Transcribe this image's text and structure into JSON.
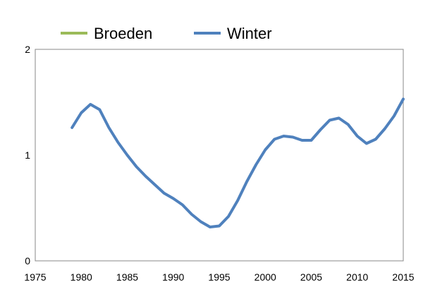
{
  "chart_data": {
    "type": "line",
    "title": "",
    "xlabel": "",
    "ylabel": "",
    "xlim": [
      1975,
      2015
    ],
    "ylim": [
      0,
      2
    ],
    "x_ticks": [
      1975,
      1980,
      1985,
      1990,
      1995,
      2000,
      2005,
      2010,
      2015
    ],
    "y_ticks": [
      0,
      1,
      2
    ],
    "grid": false,
    "legend_position": "top",
    "series": [
      {
        "name": "Broeden",
        "color": "#9bbb59",
        "x": [],
        "values": []
      },
      {
        "name": "Winter",
        "color": "#4f81bd",
        "x": [
          1979,
          1980,
          1981,
          1982,
          1983,
          1984,
          1985,
          1986,
          1987,
          1988,
          1989,
          1990,
          1991,
          1992,
          1993,
          1994,
          1995,
          1996,
          1997,
          1998,
          1999,
          2000,
          2001,
          2002,
          2003,
          2004,
          2005,
          2006,
          2007,
          2008,
          2009,
          2010,
          2011,
          2012,
          2013,
          2014,
          2015
        ],
        "values": [
          1.26,
          1.4,
          1.48,
          1.43,
          1.26,
          1.12,
          1.0,
          0.89,
          0.8,
          0.72,
          0.64,
          0.59,
          0.53,
          0.44,
          0.37,
          0.32,
          0.33,
          0.42,
          0.57,
          0.75,
          0.91,
          1.05,
          1.15,
          1.18,
          1.17,
          1.14,
          1.14,
          1.24,
          1.33,
          1.35,
          1.29,
          1.18,
          1.11,
          1.15,
          1.25,
          1.37,
          1.53
        ]
      }
    ]
  }
}
